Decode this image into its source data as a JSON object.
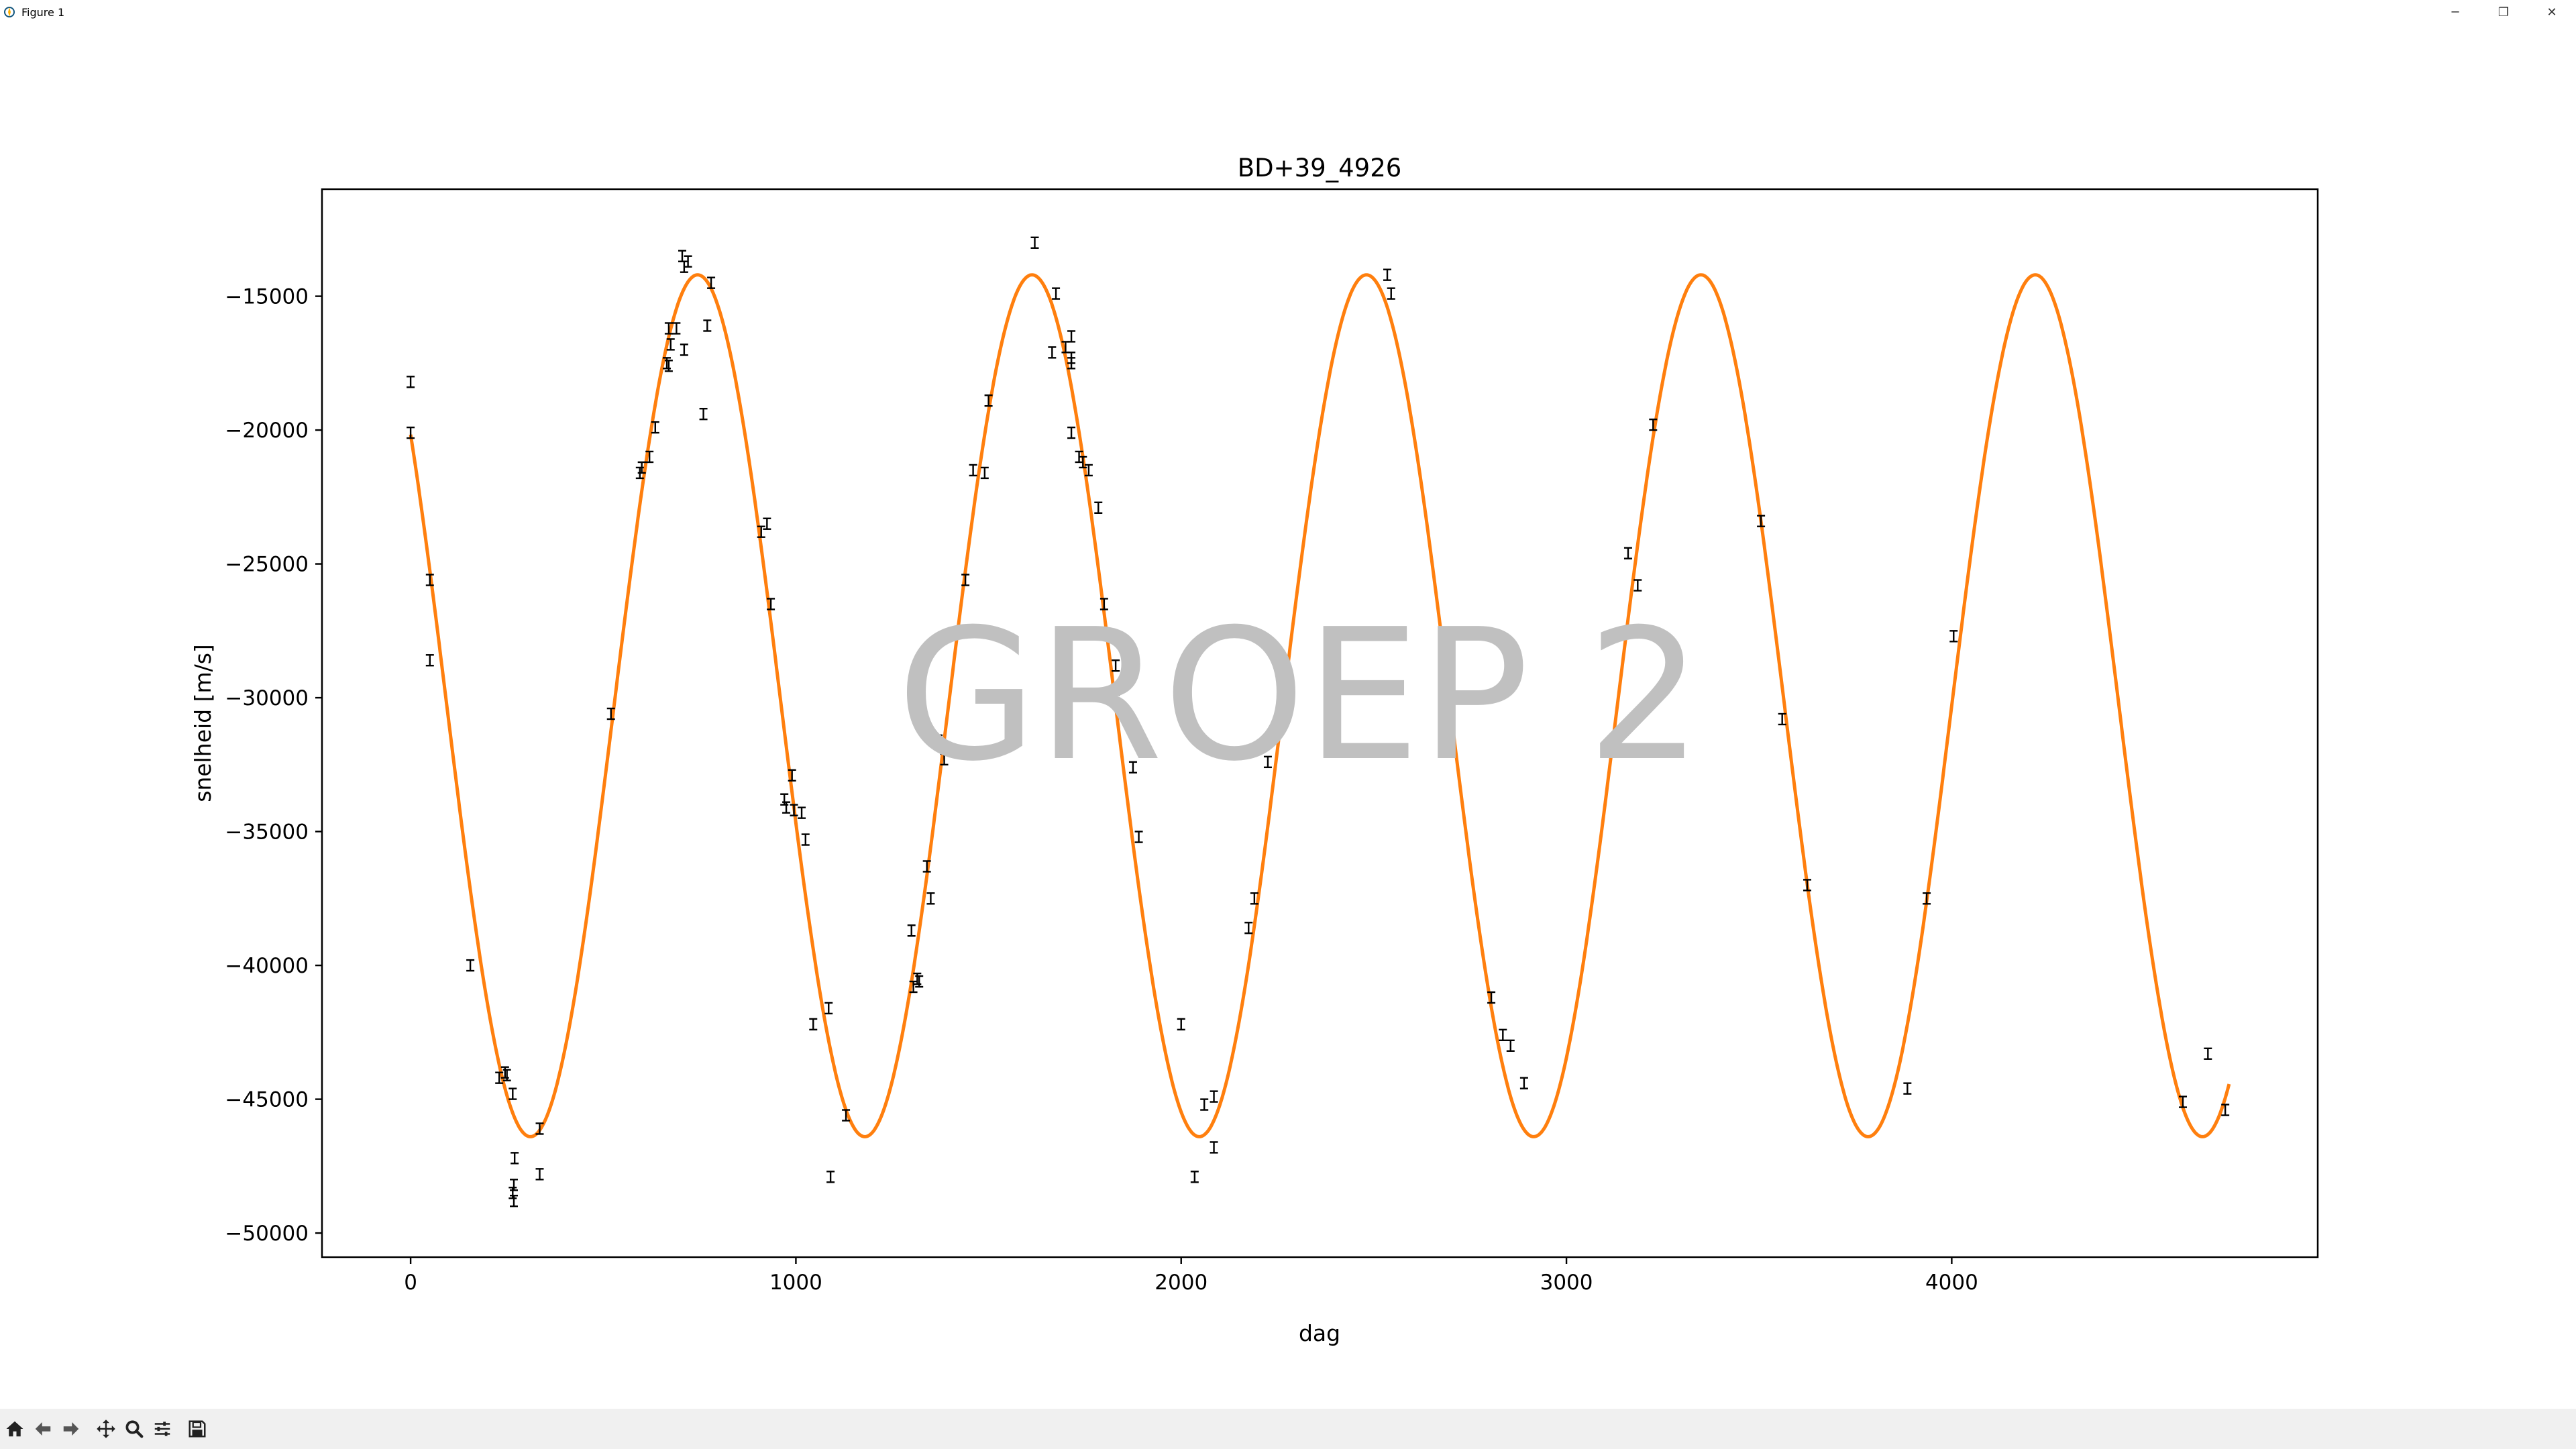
{
  "window": {
    "title": "Figure 1",
    "controls": {
      "minimize": "─",
      "restore": "❐",
      "close": "✕"
    }
  },
  "watermark": "GROEP 2",
  "colors": {
    "fit": "#ff7f0e",
    "points": "#000000",
    "frame": "#000000",
    "toolbar_bg": "#f0f0f0"
  },
  "toolbar": {
    "buttons": [
      "home-icon",
      "back-icon",
      "forward-icon",
      "pan-icon",
      "zoom-icon",
      "configure-subplots-icon",
      "save-icon"
    ]
  },
  "chart_data": {
    "type": "scatter",
    "title": "BD+39_4926",
    "xlabel": "dag",
    "ylabel": "snelheid [m/s]",
    "xlim": [
      -230,
      4950
    ],
    "ylim": [
      -50900,
      -11000
    ],
    "xticks": [
      0,
      1000,
      2000,
      3000,
      4000
    ],
    "xtick_labels": [
      "0",
      "1000",
      "2000",
      "3000",
      "4000"
    ],
    "yticks": [
      -15000,
      -20000,
      -25000,
      -30000,
      -35000,
      -40000,
      -45000,
      -50000
    ],
    "ytick_labels": [
      "−15000",
      "−20000",
      "−25000",
      "−30000",
      "−35000",
      "−40000",
      "−45000",
      "−50000"
    ],
    "grid": false,
    "series": [
      {
        "kind": "errorbar",
        "yerr": 200,
        "points": [
          [
            0,
            -18200
          ],
          [
            0,
            -20100
          ],
          [
            50,
            -25600
          ],
          [
            50,
            -28600
          ],
          [
            155,
            -40000
          ],
          [
            230,
            -44200
          ],
          [
            245,
            -44000
          ],
          [
            250,
            -44100
          ],
          [
            265,
            -44800
          ],
          [
            270,
            -47200
          ],
          [
            268,
            -48200
          ],
          [
            265,
            -48500
          ],
          [
            268,
            -48800
          ],
          [
            335,
            -46100
          ],
          [
            335,
            -47800
          ],
          [
            520,
            -30600
          ],
          [
            595,
            -21600
          ],
          [
            600,
            -21400
          ],
          [
            620,
            -21000
          ],
          [
            635,
            -19900
          ],
          [
            665,
            -17500
          ],
          [
            670,
            -17600
          ],
          [
            675,
            -16800
          ],
          [
            670,
            -16200
          ],
          [
            690,
            -16200
          ],
          [
            705,
            -13500
          ],
          [
            710,
            -13900
          ],
          [
            710,
            -17000
          ],
          [
            720,
            -13700
          ],
          [
            760,
            -19400
          ],
          [
            770,
            -16100
          ],
          [
            780,
            -14500
          ],
          [
            910,
            -23800
          ],
          [
            925,
            -23500
          ],
          [
            935,
            -26500
          ],
          [
            970,
            -33800
          ],
          [
            975,
            -34100
          ],
          [
            990,
            -32900
          ],
          [
            995,
            -34200
          ],
          [
            1015,
            -34300
          ],
          [
            1025,
            -35300
          ],
          [
            1045,
            -42200
          ],
          [
            1085,
            -41600
          ],
          [
            1090,
            -47900
          ],
          [
            1130,
            -45600
          ],
          [
            1300,
            -38700
          ],
          [
            1305,
            -40800
          ],
          [
            1315,
            -40500
          ],
          [
            1320,
            -40600
          ],
          [
            1340,
            -36300
          ],
          [
            1350,
            -37500
          ],
          [
            1370,
            -31600
          ],
          [
            1385,
            -32300
          ],
          [
            1440,
            -25600
          ],
          [
            1460,
            -21500
          ],
          [
            1490,
            -21600
          ],
          [
            1500,
            -18900
          ],
          [
            1620,
            -13000
          ],
          [
            1665,
            -17100
          ],
          [
            1675,
            -14900
          ],
          [
            1700,
            -16900
          ],
          [
            1715,
            -16500
          ],
          [
            1715,
            -17300
          ],
          [
            1715,
            -17500
          ],
          [
            1715,
            -20100
          ],
          [
            1735,
            -21000
          ],
          [
            1745,
            -21200
          ],
          [
            1760,
            -21500
          ],
          [
            1785,
            -22900
          ],
          [
            1800,
            -26500
          ],
          [
            1830,
            -28800
          ],
          [
            1830,
            -30100
          ],
          [
            1875,
            -32600
          ],
          [
            1890,
            -35200
          ],
          [
            2000,
            -42200
          ],
          [
            2035,
            -47900
          ],
          [
            2060,
            -45200
          ],
          [
            2085,
            -44900
          ],
          [
            2085,
            -46800
          ],
          [
            2175,
            -38600
          ],
          [
            2190,
            -37500
          ],
          [
            2225,
            -32400
          ],
          [
            2535,
            -14200
          ],
          [
            2545,
            -14900
          ],
          [
            2805,
            -41200
          ],
          [
            2835,
            -42600
          ],
          [
            2855,
            -43000
          ],
          [
            2890,
            -44400
          ],
          [
            3160,
            -24600
          ],
          [
            3185,
            -25800
          ],
          [
            3225,
            -19800
          ],
          [
            3505,
            -23400
          ],
          [
            3560,
            -30800
          ],
          [
            3625,
            -37000
          ],
          [
            3885,
            -44600
          ],
          [
            3935,
            -37500
          ],
          [
            4005,
            -27700
          ],
          [
            4600,
            -45100
          ],
          [
            4665,
            -43300
          ],
          [
            4710,
            -45400
          ]
        ]
      },
      {
        "kind": "fit",
        "model": "y = -30300 + 16100*cos(2*pi*(x-745)/868)",
        "offset": -30300,
        "amplitude": 16100,
        "period": 868,
        "t_peak": 745,
        "x_range": [
          0,
          4720
        ]
      }
    ]
  }
}
